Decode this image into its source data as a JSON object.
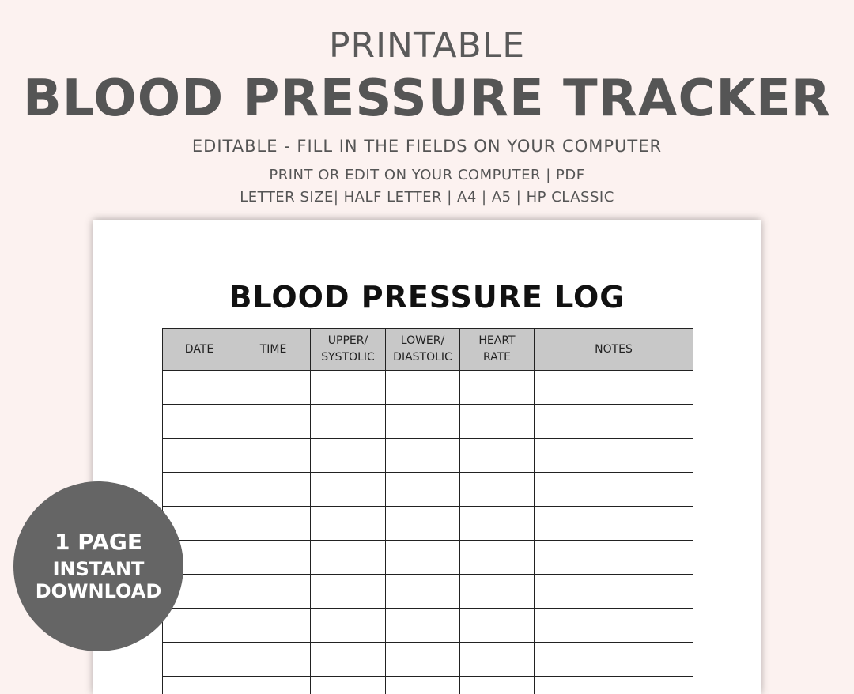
{
  "header": {
    "pretitle": "PRINTABLE",
    "title": "BLOOD PRESSURE TRACKER",
    "subtitle": "EDITABLE - FILL IN THE FIELDS ON YOUR COMPUTER",
    "line1": "PRINT OR EDIT ON YOUR COMPUTER | PDF",
    "line2": "LETTER SIZE| HALF LETTER | A4 | A5 | HP CLASSIC"
  },
  "log": {
    "title": "BLOOD PRESSURE LOG",
    "columns": [
      {
        "line1": "DATE",
        "line2": ""
      },
      {
        "line1": "TIME",
        "line2": ""
      },
      {
        "line1": "UPPER/",
        "line2": "SYSTOLIC"
      },
      {
        "line1": "LOWER/",
        "line2": "DIASTOLIC"
      },
      {
        "line1": "HEART",
        "line2": "RATE"
      },
      {
        "line1": "NOTES",
        "line2": ""
      }
    ]
  },
  "badge": {
    "line1": "1 PAGE",
    "line2": "INSTANT",
    "line3": "DOWNLOAD"
  },
  "colors": {
    "background": "#fcf2f0",
    "heading": "#555555",
    "table_header": "#c8c8c8",
    "badge": "#656565"
  }
}
